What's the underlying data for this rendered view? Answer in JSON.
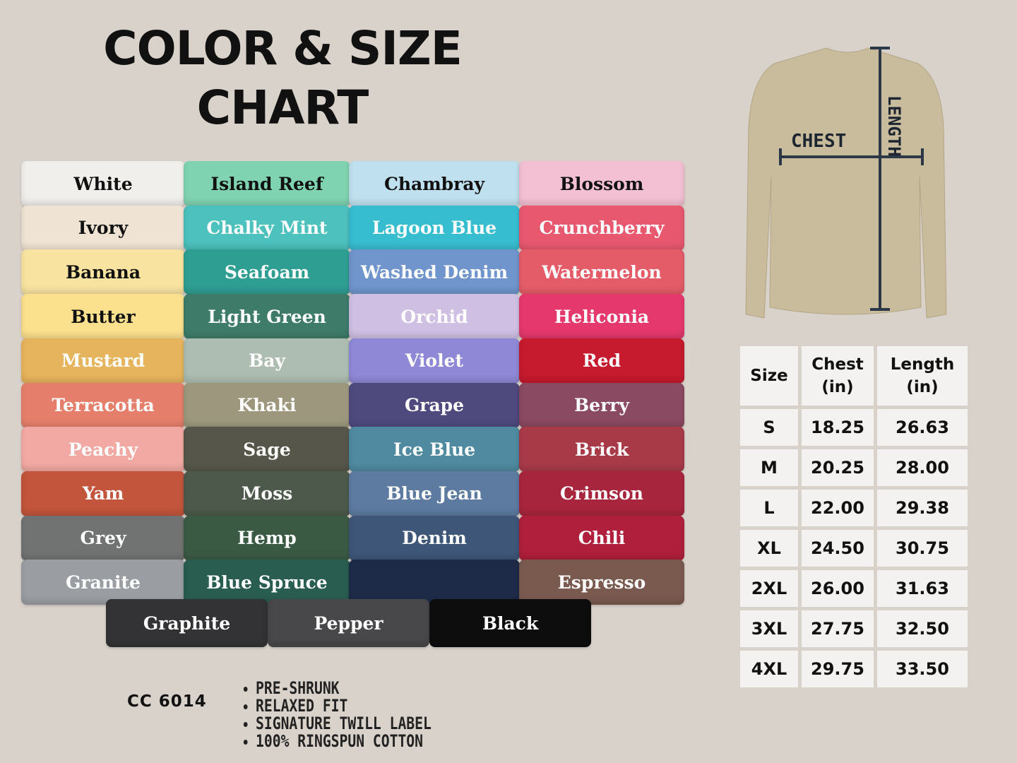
{
  "title": {
    "line1": "COLOR & SIZE",
    "line2": "CHART"
  },
  "colors": [
    {
      "name": "White",
      "hex": "#f1efec",
      "text": "#111"
    },
    {
      "name": "Island Reef",
      "hex": "#7fd3b0",
      "text": "#111"
    },
    {
      "name": "Chambray",
      "hex": "#bfe0ee",
      "text": "#111"
    },
    {
      "name": "Blossom",
      "hex": "#f3bfd3",
      "text": "#111"
    },
    {
      "name": "Ivory",
      "hex": "#efe3d4",
      "text": "#111"
    },
    {
      "name": "Chalky Mint",
      "hex": "#4cc1bd",
      "text": "#fff"
    },
    {
      "name": "Lagoon Blue",
      "hex": "#37bdd0",
      "text": "#fff"
    },
    {
      "name": "Crunchberry",
      "hex": "#e8586f",
      "text": "#fff"
    },
    {
      "name": "Banana",
      "hex": "#f8e3a0",
      "text": "#111"
    },
    {
      "name": "Seafoam",
      "hex": "#2f9e92",
      "text": "#fff"
    },
    {
      "name": "Washed Denim",
      "hex": "#6f95cc",
      "text": "#fff"
    },
    {
      "name": "Watermelon",
      "hex": "#e55c69",
      "text": "#fff"
    },
    {
      "name": "Butter",
      "hex": "#fbe08e",
      "text": "#111"
    },
    {
      "name": "Light Green",
      "hex": "#3e7c69",
      "text": "#fff"
    },
    {
      "name": "Orchid",
      "hex": "#cfbfe2",
      "text": "#fff"
    },
    {
      "name": "Heliconia",
      "hex": "#e5386d",
      "text": "#fff"
    },
    {
      "name": "Mustard",
      "hex": "#e6b45c",
      "text": "#fff"
    },
    {
      "name": "Bay",
      "hex": "#aebdb1",
      "text": "#fff"
    },
    {
      "name": "Violet",
      "hex": "#8f88d6",
      "text": "#fff"
    },
    {
      "name": "Red",
      "hex": "#c61a2e",
      "text": "#fff"
    },
    {
      "name": "Terracotta",
      "hex": "#e57f6c",
      "text": "#fff"
    },
    {
      "name": "Khaki",
      "hex": "#9d987d",
      "text": "#fff"
    },
    {
      "name": "Grape",
      "hex": "#4f4a7e",
      "text": "#fff"
    },
    {
      "name": "Berry",
      "hex": "#8a4a62",
      "text": "#fff"
    },
    {
      "name": "Peachy",
      "hex": "#f2a9a3",
      "text": "#fff"
    },
    {
      "name": "Sage",
      "hex": "#56574a",
      "text": "#fff"
    },
    {
      "name": "Ice Blue",
      "hex": "#4f8aa0",
      "text": "#fff"
    },
    {
      "name": "Brick",
      "hex": "#a83a48",
      "text": "#fff"
    },
    {
      "name": "Yam",
      "hex": "#c2553c",
      "text": "#fff"
    },
    {
      "name": "Moss",
      "hex": "#4d5a4b",
      "text": "#fff"
    },
    {
      "name": "Blue Jean",
      "hex": "#5d7ba0",
      "text": "#fff"
    },
    {
      "name": "Crimson",
      "hex": "#a8253e",
      "text": "#fff"
    },
    {
      "name": "Grey",
      "hex": "#717272",
      "text": "#fff"
    },
    {
      "name": "Hemp",
      "hex": "#3b5a44",
      "text": "#fff"
    },
    {
      "name": "Denim",
      "hex": "#3e5678",
      "text": "#fff"
    },
    {
      "name": "Chili",
      "hex": "#b01f3c",
      "text": "#fff"
    },
    {
      "name": "Granite",
      "hex": "#9a9ea3",
      "text": "#fff"
    },
    {
      "name": "Blue Spruce",
      "hex": "#285d4f",
      "text": "#fff"
    },
    {
      "name": "",
      "hex": "#1d2b48",
      "text": "#fff"
    },
    {
      "name": "Espresso",
      "hex": "#7a5a4f",
      "text": "#fff"
    }
  ],
  "bottom_colors": [
    {
      "name": "Graphite",
      "hex": "#333335",
      "text": "#fff"
    },
    {
      "name": "Pepper",
      "hex": "#48484a",
      "text": "#fff"
    },
    {
      "name": "Black",
      "hex": "#0d0d0d",
      "text": "#fff"
    }
  ],
  "diagram": {
    "chest_label": "CHEST",
    "length_label": "LENGTH",
    "shirt_color": "#c8bc9c"
  },
  "size_table": {
    "headers": [
      "Size",
      "Chest\n(in)",
      "Length\n(in)"
    ],
    "rows": [
      [
        "S",
        "18.25",
        "26.63"
      ],
      [
        "M",
        "20.25",
        "28.00"
      ],
      [
        "L",
        "22.00",
        "29.38"
      ],
      [
        "XL",
        "24.50",
        "30.75"
      ],
      [
        "2XL",
        "26.00",
        "31.63"
      ],
      [
        "3XL",
        "27.75",
        "32.50"
      ],
      [
        "4XL",
        "29.75",
        "33.50"
      ]
    ]
  },
  "model": "CC 6014",
  "features": [
    "PRE-SHRUNK",
    "RELAXED FIT",
    "SIGNATURE TWILL LABEL",
    "100% RINGSPUN COTTON"
  ]
}
